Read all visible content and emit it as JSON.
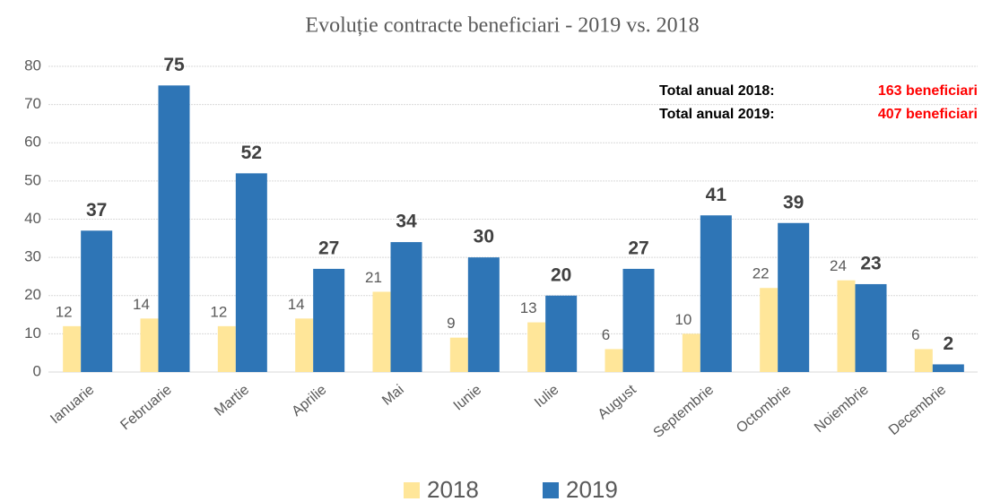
{
  "chart_data": {
    "type": "bar",
    "title": "Evoluție contracte beneficiari - 2019 vs. 2018",
    "categories": [
      "Ianuarie",
      "Februarie",
      "Martie",
      "Aprilie",
      "Mai",
      "Iunie",
      "Iulie",
      "August",
      "Septembrie",
      "Octombrie",
      "Noiembrie",
      "Decembrie"
    ],
    "series": [
      {
        "name": "2018",
        "color": "#ffe699",
        "values": [
          12,
          14,
          12,
          14,
          21,
          9,
          13,
          6,
          10,
          22,
          24,
          6
        ]
      },
      {
        "name": "2019",
        "color": "#2e75b6",
        "values": [
          37,
          75,
          52,
          27,
          34,
          30,
          20,
          27,
          41,
          39,
          23,
          2
        ]
      }
    ],
    "ylim": [
      0,
      80
    ],
    "yticks": [
      0,
      10,
      20,
      30,
      40,
      50,
      60,
      70,
      80
    ],
    "grid": true,
    "legend": "bottom",
    "annotations": [
      {
        "label": "Total anual 2018:",
        "value": "163 beneficiari"
      },
      {
        "label": "Total anual 2019:",
        "value": "407 beneficiari"
      }
    ]
  }
}
